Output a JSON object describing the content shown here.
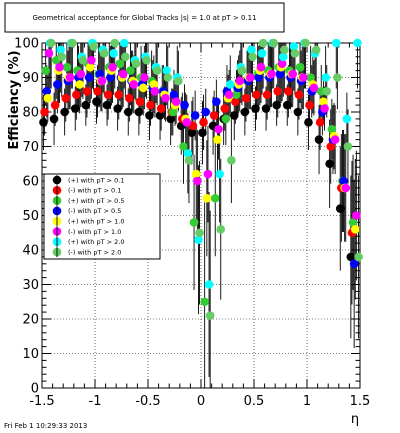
{
  "chart_data": {
    "type": "scatter",
    "title": "Geometrical acceptance for Global Tracks  |s| = 1.0 at pT > 0.11",
    "xlabel": "η",
    "ylabel": "Efficiency (%)",
    "xlim": [
      -1.5,
      1.5
    ],
    "ylim": [
      0,
      100
    ],
    "x_ticks": [
      "-1.5",
      "-1",
      "-0.5",
      "0",
      "0.5",
      "1",
      "1.5"
    ],
    "y_ticks": [
      "0",
      "10",
      "20",
      "30",
      "40",
      "50",
      "60",
      "70",
      "80",
      "90",
      "100"
    ],
    "grid": true,
    "legend_position": "center-left",
    "series": [
      {
        "name": "(+) with pT > 0.1",
        "color": "#000000",
        "x": [
          -1.45,
          -1.35,
          -1.25,
          -1.15,
          -1.05,
          -0.95,
          -0.85,
          -0.75,
          -0.65,
          -0.55,
          -0.45,
          -0.35,
          -0.25,
          -0.15,
          -0.05,
          0.05,
          0.15,
          0.25,
          0.35,
          0.45,
          0.55,
          0.65,
          0.75,
          0.85,
          0.95,
          1.05,
          1.15,
          1.25,
          1.35,
          1.45
        ],
        "y": [
          77,
          78,
          80,
          81,
          82,
          83,
          82,
          81,
          80,
          80,
          79,
          79,
          78,
          76,
          74,
          74,
          76,
          78,
          79,
          80,
          81,
          81,
          82,
          82,
          80,
          77,
          72,
          65,
          52,
          38
        ]
      },
      {
        "name": "(-) with pT > 0.1",
        "color": "#ff0000",
        "x": [
          -1.45,
          -1.35,
          -1.25,
          -1.15,
          -1.05,
          -0.95,
          -0.85,
          -0.75,
          -0.65,
          -0.55,
          -0.45,
          -0.35,
          -0.25,
          -0.15,
          -0.05,
          0.05,
          0.15,
          0.25,
          0.35,
          0.45,
          0.55,
          0.65,
          0.75,
          0.85,
          0.95,
          1.05,
          1.15,
          1.25,
          1.35,
          1.45
        ],
        "y": [
          80,
          82,
          84,
          85,
          86,
          86,
          85,
          85,
          84,
          83,
          82,
          81,
          80,
          78,
          76,
          77,
          79,
          81,
          83,
          84,
          85,
          85,
          86,
          86,
          85,
          82,
          77,
          70,
          58,
          45
        ]
      },
      {
        "name": "(+) with pT > 0.5",
        "color": "#33cc33",
        "x": [
          -1.45,
          -1.35,
          -1.25,
          -1.15,
          -1.05,
          -0.95,
          -0.85,
          -0.75,
          -0.65,
          -0.55,
          -0.45,
          -0.35,
          -0.25,
          -0.15,
          -0.05,
          0.05,
          0.15,
          0.25,
          0.35,
          0.45,
          0.55,
          0.65,
          0.75,
          0.85,
          0.95,
          1.05,
          1.15,
          1.25,
          1.35,
          1.45
        ],
        "y": [
          92,
          95,
          93,
          92,
          94,
          91,
          93,
          94,
          92,
          90,
          89,
          86,
          80,
          70,
          48,
          25,
          55,
          78,
          85,
          89,
          91,
          92,
          93,
          92,
          93,
          90,
          86,
          75,
          60,
          48
        ]
      },
      {
        "name": "(-) with pT > 0.5",
        "color": "#0000ff",
        "x": [
          -1.45,
          -1.35,
          -1.25,
          -1.15,
          -1.05,
          -0.95,
          -0.85,
          -0.75,
          -0.65,
          -0.55,
          -0.45,
          -0.35,
          -0.25,
          -0.15,
          -0.05,
          0.05,
          0.15,
          0.25,
          0.35,
          0.45,
          0.55,
          0.65,
          0.75,
          0.85,
          0.95,
          1.05,
          1.15,
          1.25,
          1.35,
          1.45
        ],
        "y": [
          86,
          88,
          89,
          90,
          90,
          91,
          90,
          90,
          89,
          88,
          87,
          86,
          85,
          82,
          79,
          80,
          83,
          86,
          87,
          89,
          90,
          90,
          91,
          90,
          89,
          86,
          80,
          72,
          60,
          36
        ]
      },
      {
        "name": "(+) with pT > 1.0",
        "color": "#ffff00",
        "x": [
          -1.45,
          -1.35,
          -1.25,
          -1.15,
          -1.05,
          -0.95,
          -0.85,
          -0.75,
          -0.65,
          -0.55,
          -0.45,
          -0.35,
          -0.25,
          -0.15,
          -0.05,
          0.05,
          0.15,
          0.25,
          0.35,
          0.45,
          0.55,
          0.65,
          0.75,
          0.85,
          0.95,
          1.05,
          1.15,
          1.25,
          1.35,
          1.45
        ],
        "y": [
          84,
          92,
          90,
          88,
          93,
          89,
          92,
          90,
          89,
          87,
          88,
          85,
          82,
          78,
          62,
          55,
          72,
          84,
          88,
          90,
          92,
          91,
          93,
          91,
          90,
          88,
          83,
          73,
          58,
          46
        ]
      },
      {
        "name": "(-) with pT > 1.0",
        "color": "#ff00ff",
        "x": [
          -1.45,
          -1.35,
          -1.25,
          -1.15,
          -1.05,
          -0.95,
          -0.85,
          -0.75,
          -0.65,
          -0.55,
          -0.45,
          -0.35,
          -0.25,
          -0.15,
          -0.05,
          0.05,
          0.15,
          0.25,
          0.35,
          0.45,
          0.55,
          0.65,
          0.75,
          0.85,
          0.95,
          1.05,
          1.15,
          1.25,
          1.35,
          1.45
        ],
        "y": [
          97,
          93,
          90,
          91,
          95,
          89,
          93,
          91,
          88,
          90,
          86,
          84,
          83,
          77,
          60,
          62,
          75,
          85,
          89,
          90,
          93,
          91,
          94,
          91,
          90,
          87,
          81,
          72,
          58,
          50
        ]
      },
      {
        "name": "(+) with pT > 2.0",
        "color": "#00ffff",
        "x": [
          -1.45,
          -1.35,
          -1.25,
          -1.15,
          -1.05,
          -0.95,
          -0.85,
          -0.75,
          -0.65,
          -0.55,
          -0.45,
          -0.35,
          -0.25,
          -0.15,
          -0.05,
          0.05,
          0.15,
          0.25,
          0.35,
          0.45,
          0.55,
          0.65,
          0.75,
          0.85,
          0.95,
          1.05,
          1.15,
          1.25,
          1.35,
          1.45
        ],
        "y": [
          100,
          98,
          100,
          96,
          100,
          98,
          97,
          100,
          95,
          96,
          93,
          92,
          90,
          68,
          43,
          30,
          62,
          88,
          93,
          98,
          97,
          100,
          96,
          99,
          100,
          97,
          90,
          100,
          78,
          100
        ]
      },
      {
        "name": "(-) with pT > 2.0",
        "color": "#66cc66",
        "x": [
          -1.45,
          -1.35,
          -1.25,
          -1.15,
          -1.05,
          -0.95,
          -0.85,
          -0.75,
          -0.65,
          -0.55,
          -0.45,
          -0.35,
          -0.25,
          -0.15,
          -0.05,
          0.05,
          0.15,
          0.25,
          0.35,
          0.45,
          0.55,
          0.65,
          0.75,
          0.85,
          0.95,
          1.05,
          1.15,
          1.25,
          1.35,
          1.45
        ],
        "y": [
          100,
          96,
          100,
          95,
          99,
          97,
          100,
          96,
          94,
          95,
          92,
          90,
          89,
          66,
          45,
          21,
          46,
          66,
          92,
          96,
          100,
          100,
          98,
          97,
          100,
          98,
          86,
          90,
          70,
          38
        ]
      }
    ]
  },
  "footer": {
    "timestamp": "Fri Feb  1 10:29:33 2013"
  }
}
